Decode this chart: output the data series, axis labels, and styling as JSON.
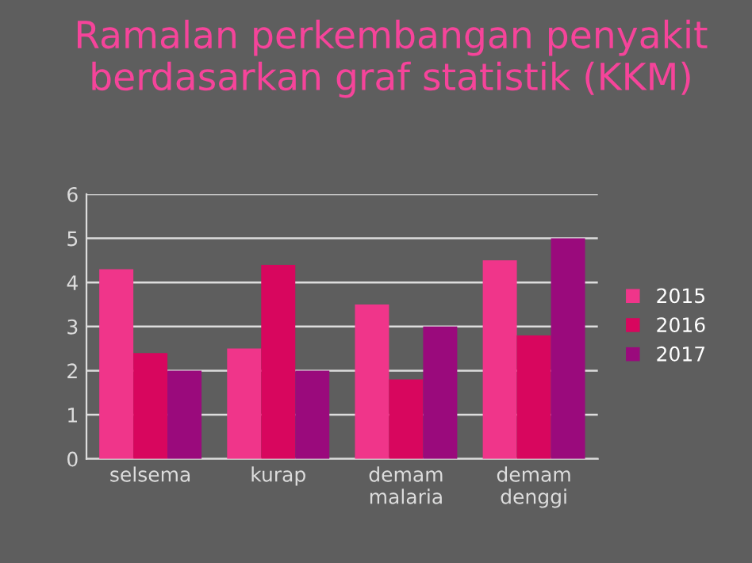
{
  "chart_data": {
    "type": "bar",
    "title": "Ramalan perkembangan penyakit\nberdasarkan graf statistik (KKM)",
    "categories": [
      "selsema",
      "kurap",
      "demam\nmalaria",
      "demam\ndenggi"
    ],
    "series": [
      {
        "name": "2015",
        "color": "#f0358a",
        "values": [
          4.3,
          2.5,
          3.5,
          4.5
        ]
      },
      {
        "name": "2016",
        "color": "#d8065e",
        "values": [
          2.4,
          4.4,
          1.8,
          2.8
        ]
      },
      {
        "name": "2017",
        "color": "#9a0a7c",
        "values": [
          2.0,
          2.0,
          3.0,
          5.0
        ]
      }
    ],
    "ylim": [
      0,
      6
    ],
    "yticks": [
      0,
      1,
      2,
      3,
      4,
      5,
      6
    ],
    "grid": "y",
    "legend": "right"
  }
}
